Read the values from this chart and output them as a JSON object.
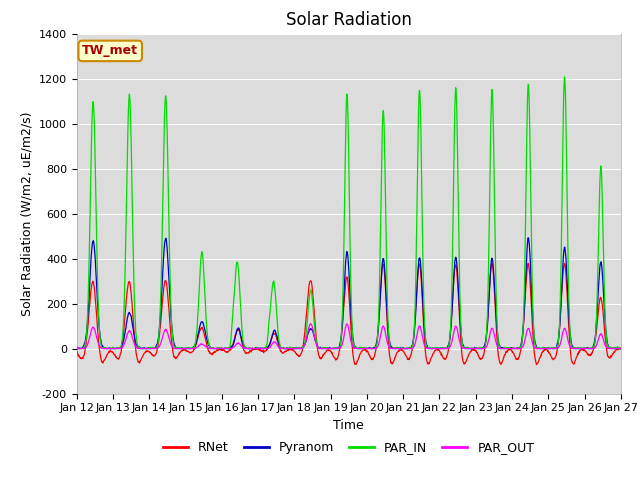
{
  "title": "Solar Radiation",
  "ylabel": "Solar Radiation (W/m2, uE/m2/s)",
  "xlabel": "Time",
  "site_label": "TW_met",
  "ylim": [
    -200,
    1400
  ],
  "yticks": [
    -200,
    0,
    200,
    400,
    600,
    800,
    1000,
    1200,
    1400
  ],
  "xtick_labels": [
    "Jan 12",
    "Jan 13",
    "Jan 14",
    "Jan 15",
    "Jan 16",
    "Jan 17",
    "Jan 18",
    "Jan 19",
    "Jan 20",
    "Jan 21",
    "Jan 22",
    "Jan 23",
    "Jan 24",
    "Jan 25",
    "Jan 26",
    "Jan 27"
  ],
  "colors": {
    "RNet": "#ff0000",
    "Pyranom": "#0000cc",
    "PAR_IN": "#00dd00",
    "PAR_OUT": "#ff00ff"
  },
  "background_color": "#dcdcdc",
  "n_days": 15,
  "pts_per_day": 96,
  "par_in_peaks": [
    1100,
    1130,
    1120,
    430,
    325,
    250,
    260,
    1130,
    1060,
    1150,
    1160,
    1150,
    1180,
    1210,
    810
  ],
  "pyranom_peaks": [
    480,
    160,
    490,
    120,
    90,
    80,
    90,
    430,
    400,
    405,
    405,
    400,
    490,
    450,
    385
  ],
  "rnet_peaks": [
    320,
    320,
    320,
    100,
    90,
    70,
    320,
    330,
    390,
    390,
    385,
    390,
    390,
    390,
    235
  ],
  "rnet_night": [
    -80,
    -80,
    -60,
    -30,
    -25,
    -20,
    -60,
    -80,
    -80,
    -80,
    -80,
    -80,
    -80,
    -80,
    -50
  ],
  "par_out_peaks": [
    95,
    80,
    85,
    20,
    25,
    30,
    110,
    110,
    100,
    100,
    100,
    90,
    90,
    90,
    65
  ],
  "day_widths": [
    0.12,
    0.12,
    0.12,
    0.12,
    0.1,
    0.1,
    0.12,
    0.1,
    0.1,
    0.1,
    0.1,
    0.1,
    0.1,
    0.1,
    0.1
  ],
  "title_fontsize": 12,
  "axis_fontsize": 9,
  "tick_fontsize": 8,
  "legend_fontsize": 9
}
